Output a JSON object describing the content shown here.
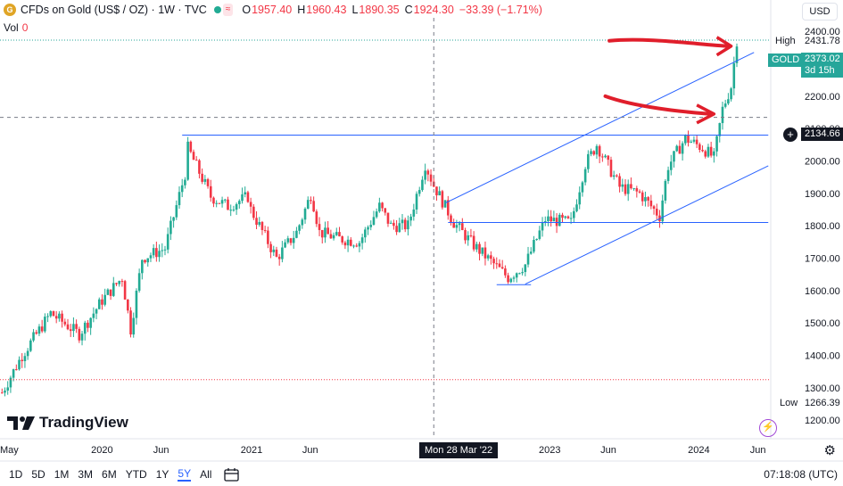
{
  "header": {
    "symbol_icon": "gold-coin-icon",
    "symbol": "CFDs on Gold (US$ / OZ) · 1W · TVC",
    "ohlc": [
      {
        "label": "O",
        "value": "1957.40"
      },
      {
        "label": "H",
        "value": "1960.43"
      },
      {
        "label": "L",
        "value": "1890.35"
      },
      {
        "label": "C",
        "value": "1924.30"
      }
    ],
    "change": "−33.39 (−1.71%)",
    "vol_label": "Vol",
    "vol_value": "0"
  },
  "currency": "USD",
  "price_tags": {
    "high_label": "High",
    "high_value": "2431.78",
    "symbol_label": "GOLD",
    "last_value": "2373.02",
    "countdown": "3d 15h",
    "crosshair_value": "2134.66",
    "low_label": "Low",
    "low_value": "1266.39"
  },
  "x_axis": [
    {
      "label": "May",
      "date": "2019-05"
    },
    {
      "label": "2020",
      "date": "2020-01"
    },
    {
      "label": "Jun",
      "date": "2020-06"
    },
    {
      "label": "2021",
      "date": "2021-01"
    },
    {
      "label": "Jun",
      "date": "2021-06"
    },
    {
      "label": "2023",
      "date": "2023-01"
    },
    {
      "label": "Jun",
      "date": "2023-06"
    },
    {
      "label": "2024",
      "date": "2024-01"
    },
    {
      "label": "Jun",
      "date": "2024-06"
    }
  ],
  "crosshair_date": "Mon 28 Mar '22",
  "brand": "TradingView",
  "timeframes": [
    "1D",
    "5D",
    "1M",
    "3M",
    "6M",
    "YTD",
    "1Y",
    "5Y",
    "All"
  ],
  "active_timeframe": "5Y",
  "clock": "07:18:08 (UTC)",
  "colors": {
    "up": "#22ab94",
    "down": "#f23645",
    "line": "#2962ff",
    "arrow": "#e01e2b",
    "last": "#26a69a"
  },
  "chart_data": {
    "type": "candlestick",
    "title": "CFDs on Gold (US$ / OZ) · 1W · TVC",
    "y_ticks": [
      1200,
      1300,
      1400,
      1500,
      1600,
      1700,
      1800,
      1900,
      2000,
      2100,
      2200,
      2300,
      2400
    ],
    "y_range": [
      1170,
      2450
    ],
    "x_range": [
      "2019-05-01",
      "2024-06-30"
    ],
    "price_path": [
      [
        "2019-05-06",
        1285
      ],
      [
        "2019-06-24",
        1400
      ],
      [
        "2019-09-02",
        1530
      ],
      [
        "2019-11-11",
        1465
      ],
      [
        "2020-01-06",
        1570
      ],
      [
        "2020-02-24",
        1640
      ],
      [
        "2020-03-16",
        1480
      ],
      [
        "2020-04-13",
        1700
      ],
      [
        "2020-06-08",
        1730
      ],
      [
        "2020-07-27",
        1960
      ],
      [
        "2020-08-03",
        2040
      ],
      [
        "2020-09-28",
        1890
      ],
      [
        "2020-11-09",
        1860
      ],
      [
        "2020-12-28",
        1890
      ],
      [
        "2021-01-04",
        1850
      ],
      [
        "2021-03-08",
        1700
      ],
      [
        "2021-04-26",
        1780
      ],
      [
        "2021-06-01",
        1900
      ],
      [
        "2021-06-21",
        1780
      ],
      [
        "2021-08-09",
        1760
      ],
      [
        "2021-09-27",
        1750
      ],
      [
        "2021-11-15",
        1860
      ],
      [
        "2021-12-13",
        1800
      ],
      [
        "2022-01-24",
        1800
      ],
      [
        "2022-03-07",
        1990
      ],
      [
        "2022-03-28",
        1925
      ],
      [
        "2022-05-16",
        1810
      ],
      [
        "2022-07-04",
        1740
      ],
      [
        "2022-09-26",
        1640
      ],
      [
        "2022-11-07",
        1680
      ],
      [
        "2022-12-26",
        1820
      ],
      [
        "2023-02-27",
        1810
      ],
      [
        "2023-04-03",
        1990
      ],
      [
        "2023-05-01",
        2050
      ],
      [
        "2023-06-26",
        1920
      ],
      [
        "2023-08-14",
        1900
      ],
      [
        "2023-10-02",
        1830
      ],
      [
        "2023-10-23",
        1985
      ],
      [
        "2023-12-04",
        2070
      ],
      [
        "2024-01-15",
        2040
      ],
      [
        "2024-02-12",
        2010
      ],
      [
        "2024-03-04",
        2160
      ],
      [
        "2024-03-25",
        2230
      ],
      [
        "2024-04-08",
        2373
      ]
    ],
    "annotations": {
      "horizontal_resistance": 2080,
      "horizontal_support": 1810,
      "march_2022_high": 2070,
      "lows_2022": 1618,
      "dashed_levels": [
        2373.02,
        2134.66,
        1325
      ]
    }
  }
}
